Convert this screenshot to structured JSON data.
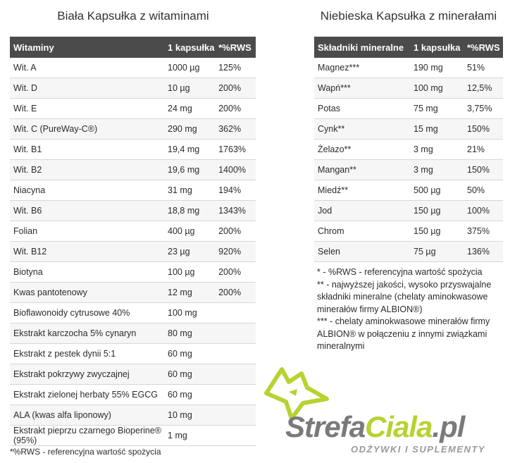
{
  "left_title": "Biała Kapsułka z witaminami",
  "right_title": "Niebieska Kapsułka z minerałami",
  "vitamins": {
    "headers": [
      "Witaminy",
      "1 kapsułka",
      "*%RWS"
    ],
    "rows": [
      [
        "Wit. A",
        "1000 µg",
        "125%"
      ],
      [
        "Wit. D",
        "10 µg",
        "200%"
      ],
      [
        "Wit. E",
        "24 mg",
        "200%"
      ],
      [
        "Wit. C (PureWay-C®)",
        "290 mg",
        "362%"
      ],
      [
        "Wit. B1",
        "19,4 mg",
        "1763%"
      ],
      [
        "Wit. B2",
        "19,6 mg",
        "1400%"
      ],
      [
        "Niacyna",
        "31 mg",
        "194%"
      ],
      [
        "Wit. B6",
        "18,8 mg",
        "1343%"
      ],
      [
        "Folian",
        "400 µg",
        "200%"
      ],
      [
        "Wit. B12",
        "23 µg",
        "920%"
      ],
      [
        "Biotyna",
        "100 µg",
        "200%"
      ],
      [
        "Kwas pantotenowy",
        "12 mg",
        "200%"
      ],
      [
        "Bioflawonoidy cytrusowe 40%",
        "100 mg",
        ""
      ],
      [
        "Ekstrakt karczocha 5% cynaryn",
        "80 mg",
        ""
      ],
      [
        "Ekstrakt z pestek dynii 5:1",
        "60 mg",
        ""
      ],
      [
        "Ekstrakt pokrzywy zwyczajnej",
        "60 mg",
        ""
      ],
      [
        "Ekstrakt zielonej herbaty 55% EGCG",
        "60 mg",
        ""
      ],
      [
        "ALA (kwas alfa liponowy)",
        "10 mg",
        ""
      ],
      [
        "Ekstrakt pieprzu czarnego Bioperine® (95%)",
        "1 mg",
        ""
      ]
    ]
  },
  "minerals": {
    "headers": [
      "Składniki mineralne",
      "1 kapsułka",
      "*%RWS"
    ],
    "rows": [
      [
        "Magnez***",
        "190 mg",
        "51%"
      ],
      [
        "Wapń***",
        "100 mg",
        "12,5%"
      ],
      [
        "Potas",
        "75 mg",
        "3,75%"
      ],
      [
        "Cynk**",
        "15 mg",
        "150%"
      ],
      [
        "Żelazo**",
        "3 mg",
        "21%"
      ],
      [
        "Mangan**",
        "3 mg",
        "150%"
      ],
      [
        "Miedź**",
        "500 µg",
        "50%"
      ],
      [
        "Jod",
        "150 µg",
        "100%"
      ],
      [
        "Chrom",
        "150 µg",
        "375%"
      ],
      [
        "Selen",
        "75 µg",
        "136%"
      ]
    ]
  },
  "footnote_left": "*%RWS - referencyjna wartość spożycia",
  "notes": [
    "* - %RWS - referencyjna wartość spożycia",
    "** - najwyższej jakości, wysoko przyswajalne składniki mineralne (chelaty aminokwasowe minerałów firmy ALBION®)",
    "*** - chelaty aminokwasowe minerałów firmy ALBION® w połączeniu z innymi związkami mineralnymi"
  ],
  "logo": {
    "strefa": "Strefa",
    "ciala": "Ciala",
    "pl": ".pl",
    "subtitle": "ODŻYWKI I SUPLEMENTY",
    "accent_color": "#b9d131",
    "gray_color": "#7a7a7a"
  },
  "header_color": "#4b4b4b"
}
